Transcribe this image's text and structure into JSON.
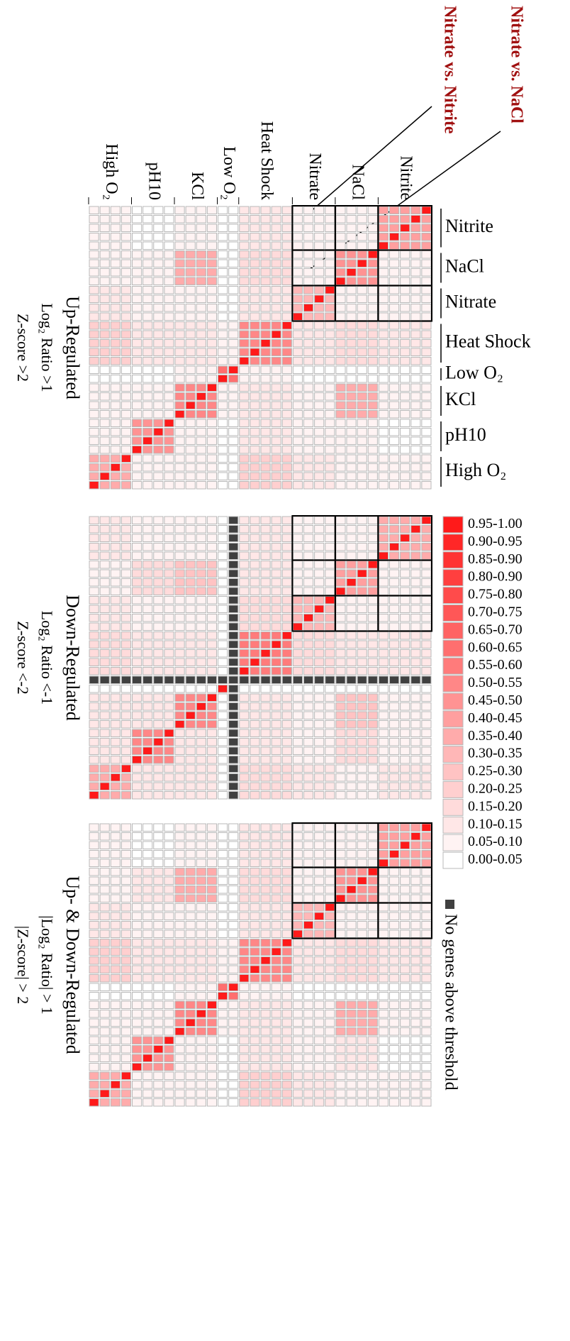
{
  "chart_data": {
    "type": "heatmap",
    "annotations": [
      "Nitrate vs. Nitrite",
      "Nitrate vs. NaCl"
    ],
    "conditions": [
      {
        "name": "High O₂",
        "replicates": 4
      },
      {
        "name": "pH10",
        "replicates": 4
      },
      {
        "name": "KCl",
        "replicates": 4
      },
      {
        "name": "Low O₂",
        "replicates": 2
      },
      {
        "name": "Heat Shock",
        "replicates": 5
      },
      {
        "name": "Nitrate",
        "replicates": 4
      },
      {
        "name": "NaCl",
        "replicates": 4
      },
      {
        "name": "Nitrite",
        "replicates": 5
      }
    ],
    "highlight": [
      5,
      6,
      7
    ],
    "panels": [
      {
        "title": [
          "Up-Regulated",
          "Log₂ Ratio >1",
          "Z-score >2"
        ],
        "diagonal": 1.0,
        "blocks": [
          [
            0.35,
            0.05,
            0.05,
            0.0,
            0.2,
            0.1,
            0.05,
            0.05
          ],
          [
            0.05,
            0.45,
            0.05,
            0.0,
            0.1,
            0.05,
            0.05,
            0.0
          ],
          [
            0.05,
            0.05,
            0.5,
            0.05,
            0.1,
            0.05,
            0.35,
            0.05
          ],
          [
            0.0,
            0.0,
            0.05,
            0.6,
            0.05,
            0.0,
            0.0,
            0.0
          ],
          [
            0.2,
            0.1,
            0.1,
            0.05,
            0.5,
            0.1,
            0.15,
            0.1
          ],
          [
            0.1,
            0.05,
            0.05,
            0.0,
            0.1,
            0.3,
            0.05,
            0.05
          ],
          [
            0.05,
            0.05,
            0.35,
            0.0,
            0.15,
            0.05,
            0.45,
            0.05
          ],
          [
            0.05,
            0.0,
            0.05,
            0.0,
            0.1,
            0.05,
            0.05,
            0.4
          ]
        ]
      },
      {
        "title": [
          "Down-Regulated",
          "Log₂ Ratio <-1",
          "Z-score <-2"
        ],
        "diagonal": 1.0,
        "blocks": [
          [
            0.35,
            0.1,
            0.1,
            0.0,
            0.15,
            0.1,
            0.05,
            0.1
          ],
          [
            0.1,
            0.5,
            0.1,
            0.0,
            0.1,
            0.05,
            0.15,
            0.05
          ],
          [
            0.1,
            0.1,
            0.5,
            0.0,
            0.1,
            0.05,
            0.25,
            0.05
          ],
          [
            0.0,
            0.0,
            0.0,
            0.6,
            0.0,
            0.0,
            0.0,
            0.0
          ],
          [
            0.15,
            0.1,
            0.1,
            0.0,
            0.55,
            0.15,
            0.1,
            0.1
          ],
          [
            0.1,
            0.05,
            0.05,
            0.0,
            0.15,
            0.3,
            0.05,
            0.05
          ],
          [
            0.05,
            0.15,
            0.25,
            0.0,
            0.1,
            0.05,
            0.4,
            0.05
          ],
          [
            0.1,
            0.05,
            0.05,
            0.0,
            0.1,
            0.05,
            0.05,
            0.35
          ]
        ],
        "missing": [
          13
        ]
      },
      {
        "title": [
          "Up- & Down-Regulated",
          "|Log₂ Ratio| > 1",
          "|Z-score| > 2"
        ],
        "diagonal": 1.0,
        "blocks": [
          [
            0.35,
            0.05,
            0.05,
            0.0,
            0.2,
            0.1,
            0.05,
            0.05
          ],
          [
            0.05,
            0.45,
            0.05,
            0.0,
            0.1,
            0.05,
            0.1,
            0.0
          ],
          [
            0.05,
            0.05,
            0.5,
            0.05,
            0.1,
            0.05,
            0.35,
            0.05
          ],
          [
            0.0,
            0.0,
            0.05,
            0.6,
            0.05,
            0.0,
            0.0,
            0.0
          ],
          [
            0.2,
            0.1,
            0.1,
            0.05,
            0.5,
            0.1,
            0.15,
            0.1
          ],
          [
            0.1,
            0.05,
            0.05,
            0.0,
            0.1,
            0.3,
            0.05,
            0.05
          ],
          [
            0.05,
            0.1,
            0.35,
            0.0,
            0.15,
            0.05,
            0.45,
            0.05
          ],
          [
            0.05,
            0.0,
            0.05,
            0.0,
            0.1,
            0.05,
            0.05,
            0.4
          ]
        ]
      }
    ],
    "legend": {
      "bins": [
        {
          "label": "0.95-1.00",
          "from": 0.95,
          "to": 1.0,
          "color": "#ff1a1a"
        },
        {
          "label": "0.90-0.95",
          "from": 0.9,
          "to": 0.95,
          "color": "#ff2727"
        },
        {
          "label": "0.85-0.90",
          "from": 0.85,
          "to": 0.9,
          "color": "#ff3333"
        },
        {
          "label": "0.80-0.90",
          "from": 0.8,
          "to": 0.9,
          "color": "#ff3f3f"
        },
        {
          "label": "0.75-0.80",
          "from": 0.75,
          "to": 0.8,
          "color": "#ff4b4b"
        },
        {
          "label": "0.70-0.75",
          "from": 0.7,
          "to": 0.75,
          "color": "#ff5757"
        },
        {
          "label": "0.65-0.70",
          "from": 0.65,
          "to": 0.7,
          "color": "#ff6363"
        },
        {
          "label": "0.60-0.65",
          "from": 0.6,
          "to": 0.65,
          "color": "#ff6f6f"
        },
        {
          "label": "0.55-0.60",
          "from": 0.55,
          "to": 0.6,
          "color": "#ff7b7b"
        },
        {
          "label": "0.50-0.55",
          "from": 0.5,
          "to": 0.55,
          "color": "#ff8787"
        },
        {
          "label": "0.45-0.50",
          "from": 0.45,
          "to": 0.5,
          "color": "#ff9393"
        },
        {
          "label": "0.40-0.45",
          "from": 0.4,
          "to": 0.45,
          "color": "#ff9f9f"
        },
        {
          "label": "0.35-0.40",
          "from": 0.35,
          "to": 0.4,
          "color": "#ffabab"
        },
        {
          "label": "0.30-0.35",
          "from": 0.3,
          "to": 0.35,
          "color": "#ffb7b7"
        },
        {
          "label": "0.25-0.30",
          "from": 0.25,
          "to": 0.3,
          "color": "#ffc3c3"
        },
        {
          "label": "0.20-0.25",
          "from": 0.2,
          "to": 0.25,
          "color": "#ffcfcf"
        },
        {
          "label": "0.15-0.20",
          "from": 0.15,
          "to": 0.2,
          "color": "#ffdbdb"
        },
        {
          "label": "0.10-0.15",
          "from": 0.1,
          "to": 0.15,
          "color": "#ffe7e7"
        },
        {
          "label": "0.05-0.10",
          "from": 0.05,
          "to": 0.1,
          "color": "#fff3f3"
        },
        {
          "label": "0.00-0.05",
          "from": 0.0,
          "to": 0.05,
          "color": "#ffffff"
        }
      ],
      "missing_label": "No genes above threshold",
      "missing_color": "#404040"
    }
  }
}
